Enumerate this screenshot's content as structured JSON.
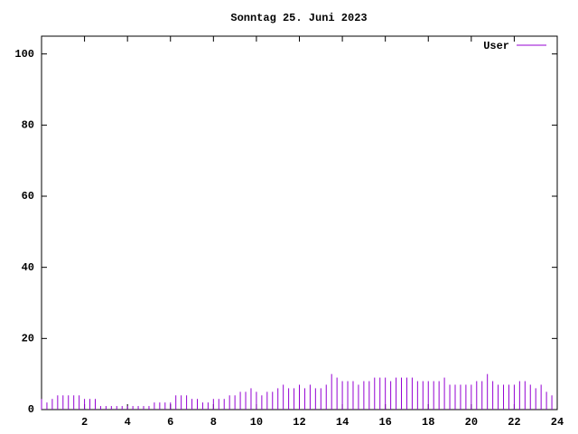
{
  "chart_data": {
    "type": "impulse",
    "title": "Sonntag 25. Juni 2023",
    "x": [
      0,
      0.25,
      0.5,
      0.75,
      1,
      1.25,
      1.5,
      1.75,
      2,
      2.25,
      2.5,
      2.75,
      3,
      3.25,
      3.5,
      3.75,
      4,
      4.25,
      4.5,
      4.75,
      5,
      5.25,
      5.5,
      5.75,
      6,
      6.25,
      6.5,
      6.75,
      7,
      7.25,
      7.5,
      7.75,
      8,
      8.25,
      8.5,
      8.75,
      9,
      9.25,
      9.5,
      9.75,
      10,
      10.25,
      10.5,
      10.75,
      11,
      11.25,
      11.5,
      11.75,
      12,
      12.25,
      12.5,
      12.75,
      13,
      13.25,
      13.5,
      13.75,
      14,
      14.25,
      14.5,
      14.75,
      15,
      15.25,
      15.5,
      15.75,
      16,
      16.25,
      16.5,
      16.75,
      17,
      17.25,
      17.5,
      17.75,
      18,
      18.25,
      18.5,
      18.75,
      19,
      19.25,
      19.5,
      19.75,
      20,
      20.25,
      20.5,
      20.75,
      21,
      21.25,
      21.5,
      21.75,
      22,
      22.25,
      22.5,
      22.75,
      23,
      23.25,
      23.5,
      23.75
    ],
    "series": [
      {
        "name": "User",
        "color": "#9400d3",
        "values": [
          3,
          2,
          3,
          4,
          4,
          4,
          4,
          4,
          3,
          3,
          3,
          1,
          1,
          1,
          1,
          1,
          1,
          1,
          1,
          1,
          1,
          2,
          2,
          2,
          2,
          4,
          4,
          4,
          3,
          3,
          2,
          2,
          3,
          3,
          3,
          4,
          4,
          5,
          5,
          6,
          5,
          4,
          5,
          5,
          6,
          7,
          6,
          6,
          7,
          6,
          7,
          6,
          6,
          7,
          10,
          9,
          8,
          8,
          8,
          7,
          8,
          8,
          9,
          9,
          9,
          8,
          9,
          9,
          9,
          9,
          8,
          8,
          8,
          8,
          8,
          9,
          7,
          7,
          7,
          7,
          7,
          8,
          8,
          10,
          8,
          7,
          7,
          7,
          7,
          8,
          8,
          7,
          6,
          7,
          5,
          4
        ]
      }
    ],
    "xlim": [
      0,
      24
    ],
    "xticks": [
      2,
      4,
      6,
      8,
      10,
      12,
      14,
      16,
      18,
      20,
      22,
      24
    ],
    "ylim": [
      0,
      105
    ],
    "yticks": [
      0,
      20,
      40,
      60,
      80,
      100
    ]
  }
}
